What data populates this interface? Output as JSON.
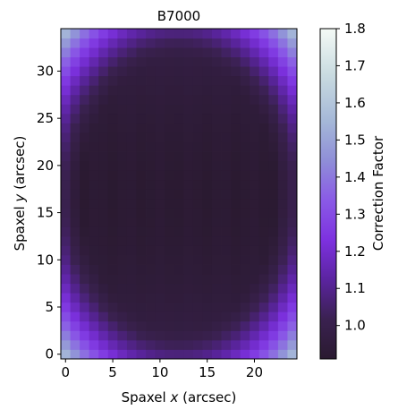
{
  "chart_data": {
    "type": "heatmap",
    "title": "B7000",
    "xlabel": "Spaxel x (arcsec)",
    "xlabel_parts": {
      "prefix": "Spaxel ",
      "var": "x",
      "suffix": " (arcsec)"
    },
    "ylabel": "Spaxel y (arcsec)",
    "ylabel_parts": {
      "prefix": "Spaxel ",
      "var": "y",
      "suffix": " (arcsec)"
    },
    "xlim": [
      -0.5,
      24.5
    ],
    "ylim": [
      -0.5,
      34.5
    ],
    "xticks": [
      0,
      5,
      10,
      15,
      20
    ],
    "yticks": [
      0,
      5,
      10,
      15,
      20,
      25,
      30
    ],
    "grid": {
      "nx": 25,
      "ny": 35
    },
    "colorbar": {
      "label": "Correction Factor",
      "range": [
        0.91,
        1.8
      ],
      "ticks": [
        1.0,
        1.1,
        1.2,
        1.3,
        1.4,
        1.5,
        1.6,
        1.7,
        1.8
      ],
      "tick_labels": [
        "1.0",
        "1.1",
        "1.2",
        "1.3",
        "1.4",
        "1.5",
        "1.6",
        "1.7",
        "1.8"
      ],
      "colormap_stops": [
        [
          0.0,
          "#2a1a30"
        ],
        [
          0.12,
          "#3a2150"
        ],
        [
          0.24,
          "#5b24a0"
        ],
        [
          0.36,
          "#7d31e0"
        ],
        [
          0.48,
          "#8a5ae6"
        ],
        [
          0.6,
          "#8f8ed8"
        ],
        [
          0.72,
          "#a5b8d8"
        ],
        [
          0.86,
          "#c9dbe0"
        ],
        [
          1.0,
          "#f4faf6"
        ]
      ]
    }
  }
}
